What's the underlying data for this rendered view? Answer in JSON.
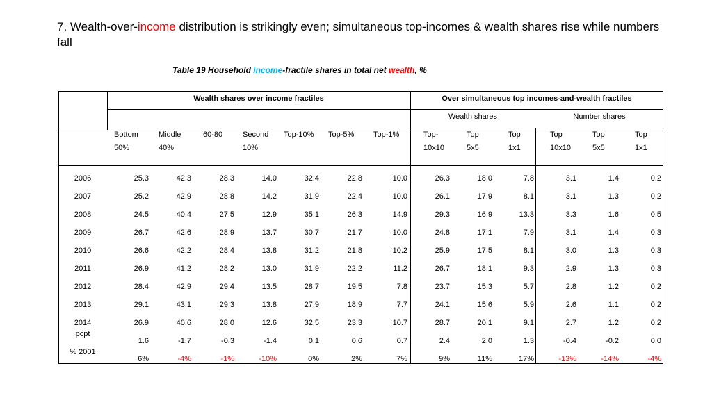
{
  "slide": {
    "title_prefix": "7. Wealth-over-",
    "title_income": "income",
    "title_suffix": " distribution is strikingly even; simultaneous top-incomes & wealth shares rise while numbers fall"
  },
  "table_title": {
    "prefix": "Table 19 Household ",
    "income": "income",
    "middle": "-fractile shares in total net ",
    "wealth": "wealth",
    "suffix": ", %"
  },
  "headers": {
    "group_left": "Wealth shares over income fractiles",
    "group_right": "Over simultaneous top incomes-and-wealth fractiles",
    "sub_wealth": "Wealth shares",
    "sub_number": "Number shares",
    "columns": [
      [
        "Bottom",
        "50%"
      ],
      [
        "Middle",
        "40%"
      ],
      [
        "60-80",
        ""
      ],
      [
        "Second",
        "10%"
      ],
      [
        "Top-10%",
        ""
      ],
      [
        "Top-5%",
        ""
      ],
      [
        "Top-1%",
        ""
      ],
      [
        "Top-",
        "10x10"
      ],
      [
        "Top",
        "5x5"
      ],
      [
        "Top",
        "1x1"
      ],
      [
        "Top",
        "10x10"
      ],
      [
        "Top",
        "5x5"
      ],
      [
        "Top",
        "1x1"
      ]
    ]
  },
  "rows": [
    {
      "label": "2006",
      "values": [
        "25.3",
        "42.3",
        "28.3",
        "14.0",
        "32.4",
        "22.8",
        "10.0",
        "26.3",
        "18.0",
        "7.8",
        "3.1",
        "1.4",
        "0.2"
      ]
    },
    {
      "label": "2007",
      "values": [
        "25.2",
        "42.9",
        "28.8",
        "14.2",
        "31.9",
        "22.4",
        "10.0",
        "26.1",
        "17.9",
        "8.1",
        "3.1",
        "1.3",
        "0.2"
      ]
    },
    {
      "label": "2008",
      "values": [
        "24.5",
        "40.4",
        "27.5",
        "12.9",
        "35.1",
        "26.3",
        "14.9",
        "29.3",
        "16.9",
        "13.3",
        "3.3",
        "1.6",
        "0.5"
      ]
    },
    {
      "label": "2009",
      "values": [
        "26.7",
        "42.6",
        "28.9",
        "13.7",
        "30.7",
        "21.7",
        "10.0",
        "24.8",
        "17.1",
        "7.9",
        "3.1",
        "1.4",
        "0.3"
      ]
    },
    {
      "label": "2010",
      "values": [
        "26.6",
        "42.2",
        "28.4",
        "13.8",
        "31.2",
        "21.8",
        "10.2",
        "25.9",
        "17.5",
        "8.1",
        "3.0",
        "1.3",
        "0.3"
      ]
    },
    {
      "label": "2011",
      "values": [
        "26.9",
        "41.2",
        "28.2",
        "13.0",
        "31.9",
        "22.2",
        "11.2",
        "26.7",
        "18.1",
        "9.3",
        "2.9",
        "1.3",
        "0.3"
      ]
    },
    {
      "label": "2012",
      "values": [
        "28.4",
        "42.9",
        "29.4",
        "13.5",
        "28.7",
        "19.5",
        "7.8",
        "23.7",
        "15.3",
        "5.7",
        "2.8",
        "1.2",
        "0.2"
      ]
    },
    {
      "label": "2013",
      "values": [
        "29.1",
        "43.1",
        "29.3",
        "13.8",
        "27.9",
        "18.9",
        "7.7",
        "24.1",
        "15.6",
        "5.9",
        "2.6",
        "1.1",
        "0.2"
      ]
    },
    {
      "label": "2014",
      "values": [
        "26.9",
        "40.6",
        "28.0",
        "12.6",
        "32.5",
        "23.3",
        "10.7",
        "28.7",
        "20.1",
        "9.1",
        "2.7",
        "1.2",
        "0.2"
      ]
    },
    {
      "label": "pcpt",
      "values": [
        "1.6",
        "-1.7",
        "-0.3",
        "-1.4",
        "0.1",
        "0.6",
        "0.7",
        "2.4",
        "2.0",
        "1.3",
        "-0.4",
        "-0.2",
        "0.0"
      ]
    },
    {
      "label": "% 2001",
      "values": [
        "6%",
        "-4%",
        "-1%",
        "-10%",
        "0%",
        "2%",
        "7%",
        "9%",
        "11%",
        "17%",
        "-13%",
        "-14%",
        "-4%"
      ],
      "red": [
        false,
        true,
        true,
        true,
        false,
        false,
        false,
        false,
        false,
        false,
        true,
        true,
        true
      ]
    }
  ],
  "colors": {
    "highlight_red": "#ff0000",
    "highlight_cyan": "#00b0f0"
  }
}
